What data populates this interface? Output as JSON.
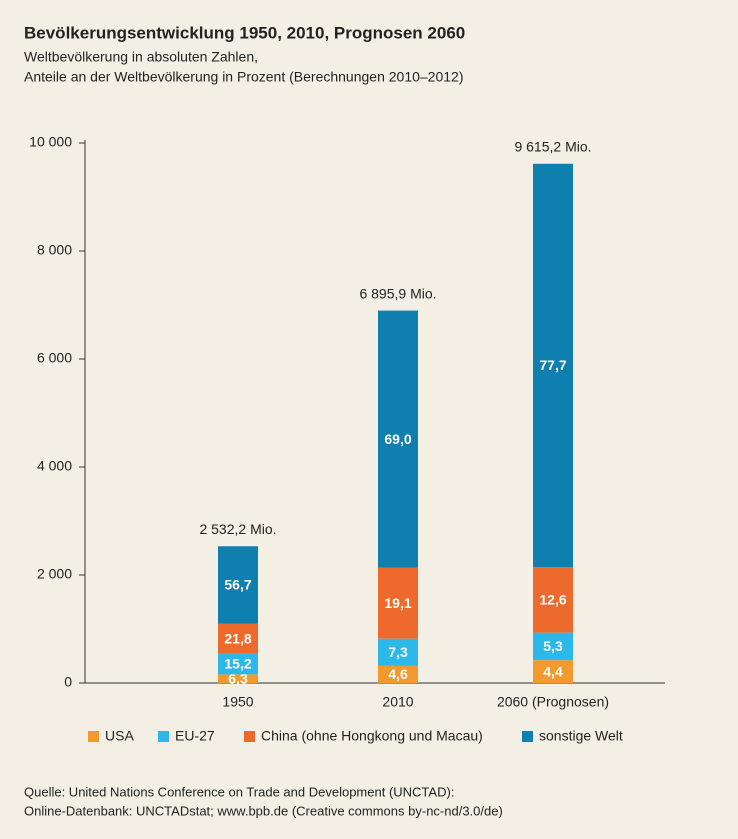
{
  "chart_data": {
    "type": "bar",
    "stacked": true,
    "title": "Bevölkerungsentwicklung 1950, 2010, Prognosen 2060",
    "subtitle": [
      "Weltbevölkerung in absoluten Zahlen,",
      "Anteile an der Weltbevölkerung in Prozent (Berechnungen 2010–2012)"
    ],
    "categories": [
      "1950",
      "2010",
      "2060 (Prognosen)"
    ],
    "totals": {
      "values": [
        2532.2,
        6895.9,
        9615.2
      ],
      "value_labels": [
        "2 532,2 Mio.",
        "6 895,9 Mio.",
        "9 615,2 Mio."
      ]
    },
    "series": [
      {
        "name": "USA",
        "color": "#f39a2e",
        "values": [
          6.3,
          4.6,
          4.4
        ],
        "value_labels": [
          "6,3",
          "4,6",
          "4,4"
        ]
      },
      {
        "name": "EU-27",
        "color": "#2cb9e9",
        "values": [
          15.2,
          7.3,
          5.3
        ],
        "value_labels": [
          "15,2",
          "7,3",
          "5,3"
        ]
      },
      {
        "name": "China (ohne Hongkong und Macau)",
        "color": "#ee6a2c",
        "values": [
          21.8,
          19.1,
          12.6
        ],
        "value_labels": [
          "21,8",
          "19,1",
          "12,6"
        ]
      },
      {
        "name": "sonstige Welt",
        "color": "#0e7fae",
        "values": [
          56.7,
          69.0,
          77.7
        ],
        "value_labels": [
          "56,7",
          "69,0",
          "77,7"
        ]
      }
    ],
    "ylim": [
      0,
      10000
    ],
    "yticks": [
      0,
      {
        "value": 2000,
        "label": "2 000"
      },
      {
        "value": 4000,
        "label": "4 000"
      },
      {
        "value": 6000,
        "label": "6 000"
      },
      {
        "value": 8000,
        "label": "8 000"
      },
      {
        "value": 10000,
        "label": "10 000"
      }
    ],
    "source": [
      "Quelle: United Nations Conference on Trade and Development (UNCTAD):",
      "Online-Datenbank: UNCTADstat; www.bpb.de (Creative commons by-nc-nd/3.0/de)"
    ]
  }
}
